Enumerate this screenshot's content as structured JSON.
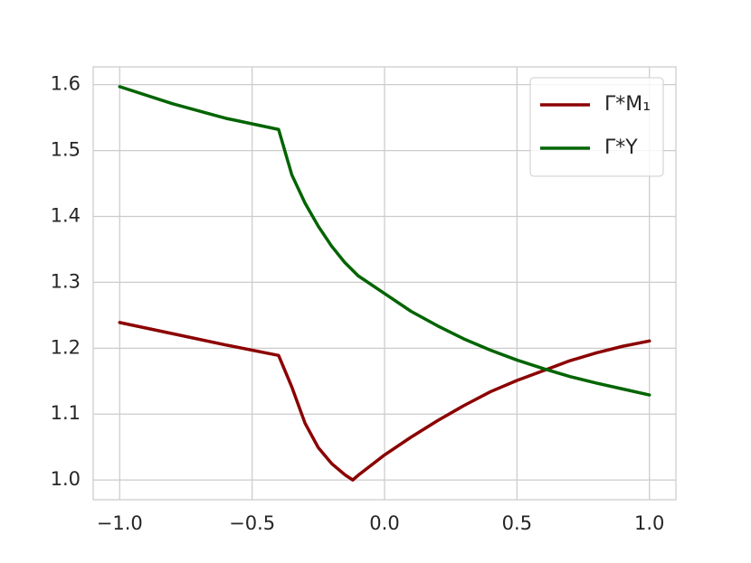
{
  "chart_data": {
    "type": "line",
    "x": [
      -1.0,
      -0.8,
      -0.6,
      -0.4,
      -0.35,
      -0.3,
      -0.25,
      -0.2,
      -0.15,
      -0.12,
      -0.1,
      0.0,
      0.1,
      0.2,
      0.3,
      0.4,
      0.5,
      0.6,
      0.7,
      0.8,
      0.9,
      1.0
    ],
    "series": [
      {
        "name": "Γ*M₁",
        "color": "#8b0000",
        "values": [
          1.239,
          1.222,
          1.205,
          1.189,
          1.141,
          1.086,
          1.049,
          1.025,
          1.008,
          1.0,
          1.007,
          1.038,
          1.065,
          1.09,
          1.113,
          1.134,
          1.151,
          1.166,
          1.181,
          1.193,
          1.203,
          1.211
        ]
      },
      {
        "name": "Γ*Y",
        "color": "#006400",
        "values": [
          1.597,
          1.571,
          1.549,
          1.532,
          1.463,
          1.42,
          1.385,
          1.355,
          1.33,
          1.318,
          1.31,
          1.283,
          1.256,
          1.234,
          1.214,
          1.197,
          1.182,
          1.169,
          1.157,
          1.147,
          1.138,
          1.129
        ]
      }
    ],
    "xlim": [
      -1.1,
      1.1
    ],
    "ylim": [
      0.97,
      1.627
    ],
    "xticks": [
      {
        "value": -1.0,
        "label": "−1.0"
      },
      {
        "value": -0.5,
        "label": "−0.5"
      },
      {
        "value": 0.0,
        "label": "0.0"
      },
      0.5,
      {
        "value": 1.0,
        "label": "1.0"
      }
    ],
    "yticks": [
      {
        "value": 1.0,
        "label": "1.0"
      },
      1.1,
      1.2,
      1.3,
      1.4,
      1.5,
      1.6
    ],
    "grid": true,
    "legend": "upper right"
  }
}
